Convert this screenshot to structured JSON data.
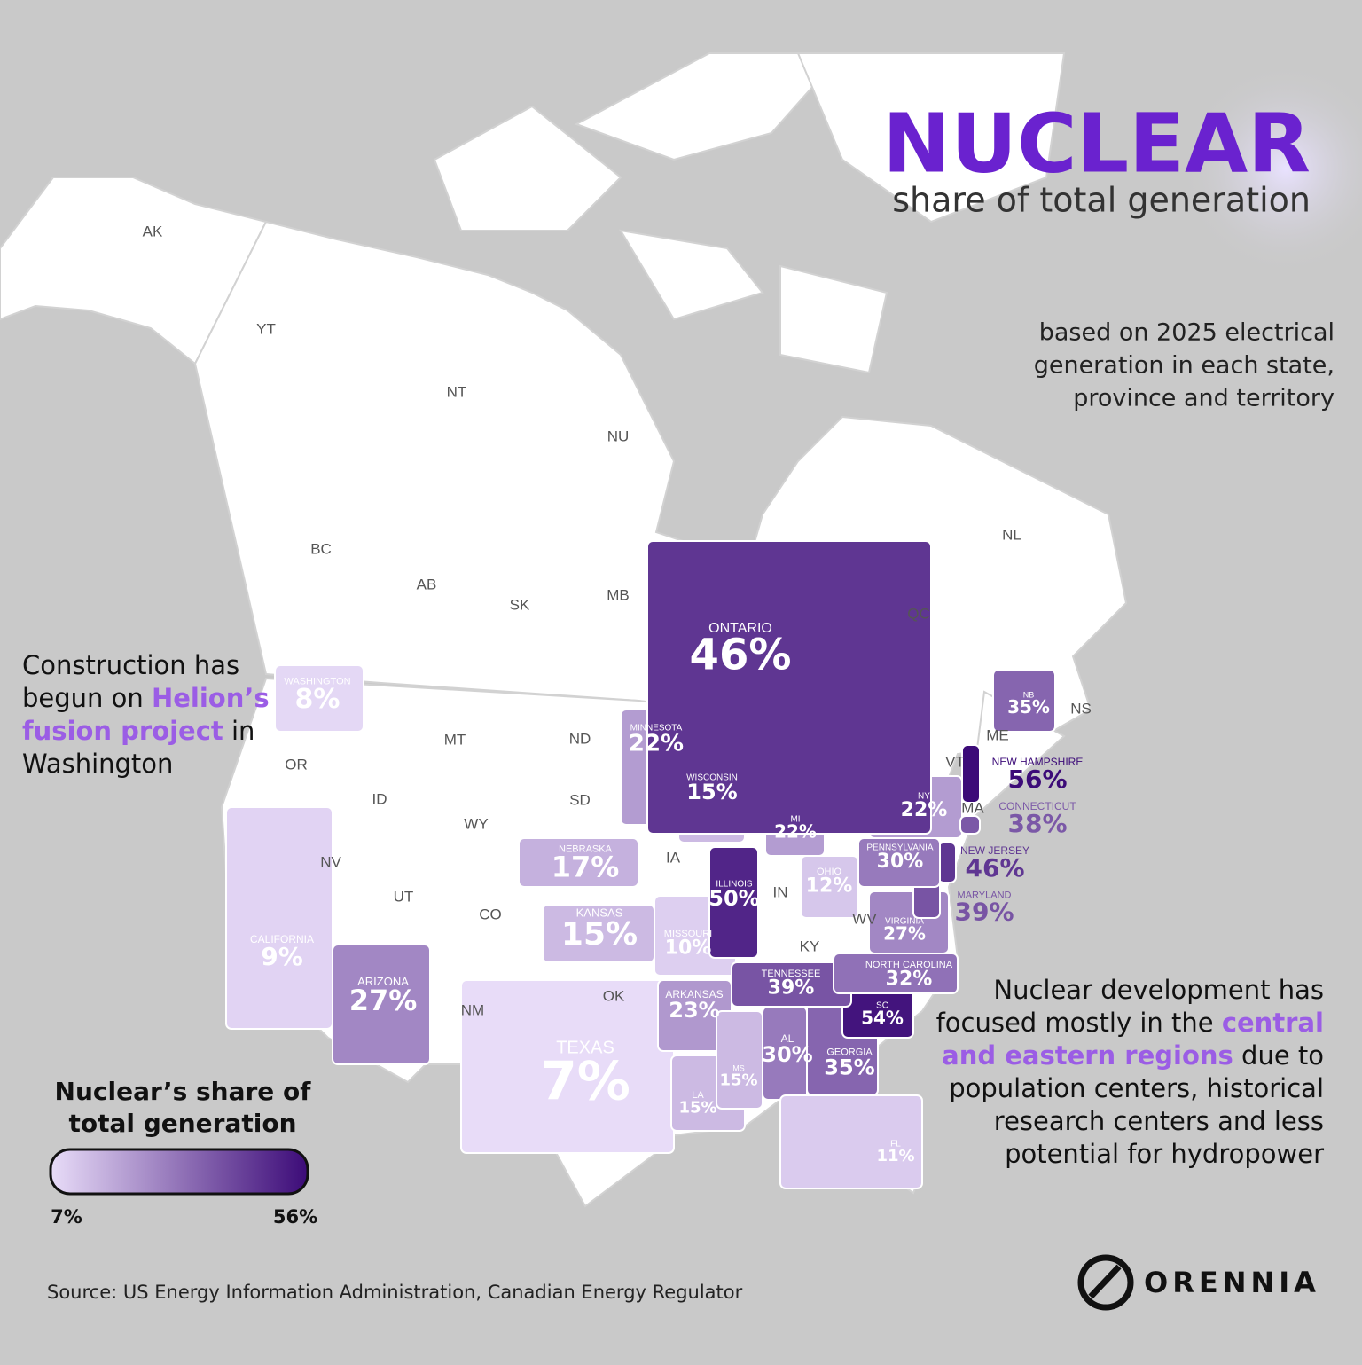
{
  "title": "NUCLEAR",
  "subtitle": "share of total generation",
  "basis_note": [
    "based on 2025 electrical",
    "generation in each state,",
    "province and territory"
  ],
  "left_note": [
    [
      {
        "text": "Construction has",
        "em": false
      }
    ],
    [
      {
        "text": "begun on ",
        "em": false
      },
      {
        "text": "Helion’s",
        "em": true
      }
    ],
    [
      {
        "text": "fusion project",
        "em": true
      },
      {
        "text": " in",
        "em": false
      }
    ],
    [
      {
        "text": "Washington",
        "em": false
      }
    ]
  ],
  "right_note": [
    [
      {
        "text": "Nuclear development has",
        "em": false
      }
    ],
    [
      {
        "text": "focused mostly in the ",
        "em": false
      },
      {
        "text": "central",
        "em": true
      }
    ],
    [
      {
        "text": "and eastern regions",
        "em": true
      },
      {
        "text": " due to",
        "em": false
      }
    ],
    [
      {
        "text": "population centers, historical",
        "em": false
      }
    ],
    [
      {
        "text": "research centers and less",
        "em": false
      }
    ],
    [
      {
        "text": "potential for hydropower",
        "em": false
      }
    ]
  ],
  "legend": {
    "title": [
      "Nuclear’s share of",
      "total generation"
    ],
    "ticks": [
      {
        "value": 7,
        "label": "7%"
      },
      {
        "value": 56,
        "label": "56%"
      }
    ],
    "colors": [
      "#e8dcf8",
      "#3c0b78"
    ]
  },
  "regions": [
    {
      "name": "WASHINGTON",
      "value": 8,
      "value_label": "8%"
    },
    {
      "name": "CALIFORNIA",
      "value": 9,
      "value_label": "9%"
    },
    {
      "name": "ARIZONA",
      "value": 27,
      "value_label": "27%"
    },
    {
      "name": "TEXAS",
      "value": 7,
      "value_label": "7%"
    },
    {
      "name": "NEBRASKA",
      "value": 17,
      "value_label": "17%"
    },
    {
      "name": "KANSAS",
      "value": 15,
      "value_label": "15%"
    },
    {
      "name": "MINNESOTA",
      "value": 22,
      "value_label": "22%"
    },
    {
      "name": "WISCONSIN",
      "value": 15,
      "value_label": "15%"
    },
    {
      "name": "MISSOURI",
      "value": 10,
      "value_label": "10%"
    },
    {
      "name": "ARKANSAS",
      "value": 23,
      "value_label": "23%"
    },
    {
      "name": "LA",
      "value": 15,
      "value_label": "15%"
    },
    {
      "name": "MS",
      "value": 15,
      "value_label": "15%"
    },
    {
      "name": "AL",
      "value": 30,
      "value_label": "30%"
    },
    {
      "name": "GEORGIA",
      "value": 35,
      "value_label": "35%"
    },
    {
      "name": "FL",
      "value": 11,
      "value_label": "11%"
    },
    {
      "name": "SC",
      "value": 54,
      "value_label": "54%"
    },
    {
      "name": "TENNESSEE",
      "value": 39,
      "value_label": "39%"
    },
    {
      "name": "NORTH CAROLINA",
      "value": 32,
      "value_label": "32%"
    },
    {
      "name": "VIRGINIA",
      "value": 27,
      "value_label": "27%"
    },
    {
      "name": "MARYLAND",
      "value": 39,
      "value_label": "39%"
    },
    {
      "name": "NEW JERSEY",
      "value": 46,
      "value_label": "46%"
    },
    {
      "name": "PENNSYLVANIA",
      "value": 30,
      "value_label": "30%"
    },
    {
      "name": "OHIO",
      "value": 12,
      "value_label": "12%"
    },
    {
      "name": "ILLINOIS",
      "value": 50,
      "value_label": "50%"
    },
    {
      "name": "MI",
      "value": 22,
      "value_label": "22%"
    },
    {
      "name": "NY",
      "value": 22,
      "value_label": "22%"
    },
    {
      "name": "CONNECTICUT",
      "value": 38,
      "value_label": "38%"
    },
    {
      "name": "NEW HAMPSHIRE",
      "value": 56,
      "value_label": "56%"
    },
    {
      "name": "NB",
      "value": 35,
      "value_label": "35%"
    },
    {
      "name": "ONTARIO",
      "value": 46,
      "value_label": "46%"
    }
  ],
  "unshaded_labels": [
    "AK",
    "YT",
    "NT",
    "NU",
    "BC",
    "AB",
    "SK",
    "MB",
    "QC",
    "NL",
    "NS",
    "ME",
    "VT",
    "MA",
    "OR",
    "ID",
    "MT",
    "ND",
    "SD",
    "WY",
    "NV",
    "UT",
    "CO",
    "IA",
    "IN",
    "KY",
    "WV",
    "NM",
    "OK"
  ],
  "source": "Source: US Energy Information Administration, Canadian Energy Regulator",
  "logo": "ORENNIA"
}
